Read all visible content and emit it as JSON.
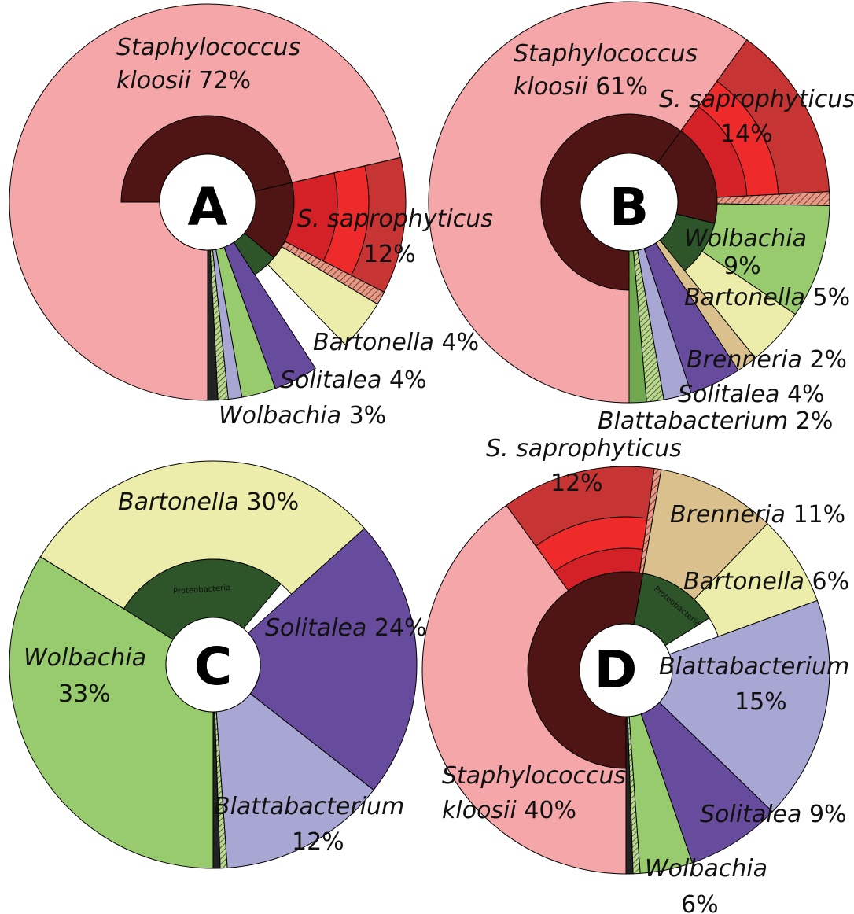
{
  "chart_data": [
    {
      "type": "pie",
      "panel": "A",
      "colors": {
        "kloosii": "#f4a6a9",
        "sap_outer": "#c63434",
        "sap_mid": "#ee2a2a",
        "sap_inner": "#d42027",
        "hatch": "#e49a86",
        "bartonella": "#ecedaa",
        "solitalea": "#674c9e",
        "wolbachia": "#98cb6d",
        "blatta": "#a8a7d4",
        "brenneria": "#d9c08c",
        "staph_ring": "#4f1414",
        "proteo_ring": "#2d5529"
      },
      "slices": [
        {
          "taxon": "Staphylococcus kloosii",
          "value": 72,
          "label_it": "Staphylococcus",
          "label_it2": "kloosii",
          "label_pct": "72%"
        },
        {
          "taxon": "S. saprophyticus",
          "value": 12,
          "label_it": "S. saprophyticus",
          "label_pct": "12%"
        },
        {
          "taxon": "Bartonella",
          "value": 4,
          "label_it": "Bartonella",
          "label_pct": "4%"
        },
        {
          "taxon": "Solitalea",
          "value": 4,
          "label_it": "Solitalea",
          "label_pct": "4%"
        },
        {
          "taxon": "Wolbachia",
          "value": 3,
          "label_it": "Wolbachia",
          "label_pct": "3%"
        }
      ]
    },
    {
      "type": "pie",
      "panel": "B",
      "slices": [
        {
          "taxon": "Staphylococcus kloosii",
          "value": 61,
          "label_it": "Staphylococcus",
          "label_it2": "kloosii",
          "label_pct": "61%"
        },
        {
          "taxon": "S. saprophyticus",
          "value": 14,
          "label_it": "S. saprophyticus",
          "label_pct": "14%"
        },
        {
          "taxon": "Wolbachia",
          "value": 9,
          "label_it": "Wolbachia",
          "label_pct": "9%"
        },
        {
          "taxon": "Bartonella",
          "value": 5,
          "label_it": "Bartonella",
          "label_pct": "5%"
        },
        {
          "taxon": "Brenneria",
          "value": 2,
          "label_it": "Brenneria",
          "label_pct": "2%"
        },
        {
          "taxon": "Solitalea",
          "value": 4,
          "label_it": "Solitalea",
          "label_pct": "4%"
        },
        {
          "taxon": "Blattabacterium",
          "value": 2,
          "label_it": "Blattabacterium",
          "label_pct": "2%"
        }
      ]
    },
    {
      "type": "pie",
      "panel": "C",
      "inner_label": "Proteobacteria",
      "slices": [
        {
          "taxon": "Bartonella",
          "value": 30,
          "label_it": "Bartonella",
          "label_pct": "30%"
        },
        {
          "taxon": "Solitalea",
          "value": 24,
          "label_it": "Solitalea",
          "label_pct": "24%"
        },
        {
          "taxon": "Blattabacterium",
          "value": 12,
          "label_it": "Blattabacterium",
          "label_pct": "12%"
        },
        {
          "taxon": "Wolbachia",
          "value": 33,
          "label_it": "Wolbachia",
          "label_pct": "33%"
        }
      ]
    },
    {
      "type": "pie",
      "panel": "D",
      "inner_label": "Proteobacteria",
      "slices": [
        {
          "taxon": "S. saprophyticus",
          "value": 12,
          "label_it": "S. saprophyticus",
          "label_pct": "12%"
        },
        {
          "taxon": "Brenneria",
          "value": 11,
          "label_it": "Brenneria",
          "label_pct": "11%"
        },
        {
          "taxon": "Bartonella",
          "value": 6,
          "label_it": "Bartonella",
          "label_pct": "6%"
        },
        {
          "taxon": "Blattabacterium",
          "value": 15,
          "label_it": "Blattabacterium",
          "label_pct": "15%"
        },
        {
          "taxon": "Solitalea",
          "value": 9,
          "label_it": "Solitalea",
          "label_pct": "9%"
        },
        {
          "taxon": "Wolbachia",
          "value": 6,
          "label_it": "Wolbachia",
          "label_pct": "6%"
        },
        {
          "taxon": "Staphylococcus kloosii",
          "value": 40,
          "label_it": "Staphylococcus",
          "label_it2": "kloosii",
          "label_pct": "40%"
        }
      ]
    }
  ]
}
